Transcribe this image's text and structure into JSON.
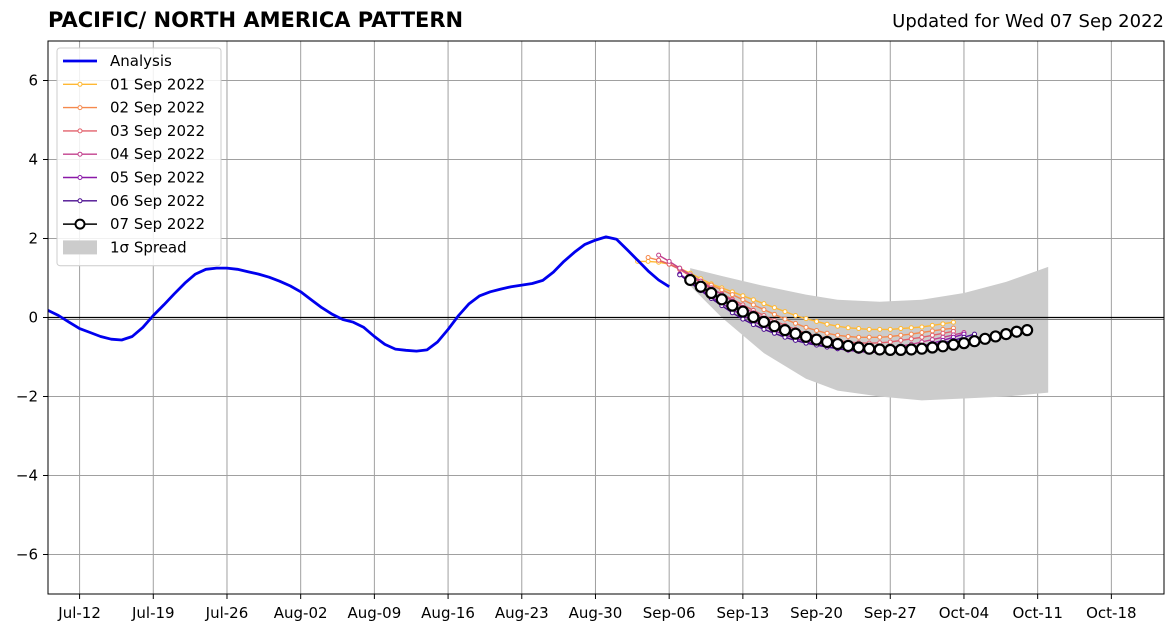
{
  "title": "PACIFIC/ NORTH AMERICA PATTERN",
  "subtitle": "Updated for Wed 07 Sep 2022",
  "chart_data": {
    "type": "line",
    "x_tick_labels": [
      "Jul-12",
      "Jul-19",
      "Jul-26",
      "Aug-02",
      "Aug-09",
      "Aug-16",
      "Aug-23",
      "Aug-30",
      "Sep-06",
      "Sep-13",
      "Sep-20",
      "Sep-27",
      "Oct-04",
      "Oct-11",
      "Oct-18"
    ],
    "y_ticks": [
      6,
      4,
      2,
      0,
      -2,
      -4,
      -6
    ],
    "y_tick_labels": [
      "6",
      "4",
      "2",
      "0",
      "−2",
      "−4",
      "−6"
    ],
    "xlim": [
      "2022-07-09",
      "2022-10-23"
    ],
    "ylim": [
      -7,
      7
    ],
    "grid": true,
    "legend_position": "top-left",
    "spread_label": "1σ Spread",
    "analysis": {
      "name": "Analysis",
      "color": "#0000ee",
      "start_date": "2022-07-09",
      "values": [
        0.18,
        0.05,
        -0.12,
        -0.28,
        -0.38,
        -0.48,
        -0.55,
        -0.57,
        -0.48,
        -0.25,
        0.05,
        0.32,
        0.6,
        0.87,
        1.1,
        1.22,
        1.25,
        1.25,
        1.22,
        1.16,
        1.1,
        1.02,
        0.92,
        0.8,
        0.65,
        0.45,
        0.25,
        0.08,
        -0.05,
        -0.12,
        -0.25,
        -0.48,
        -0.68,
        -0.8,
        -0.83,
        -0.85,
        -0.82,
        -0.62,
        -0.3,
        0.05,
        0.35,
        0.55,
        0.65,
        0.72,
        0.78,
        0.82,
        0.86,
        0.94,
        1.15,
        1.42,
        1.65,
        1.85,
        1.96,
        2.04,
        1.98,
        1.72,
        1.45,
        1.18,
        0.95,
        0.78
      ]
    },
    "forecasts": [
      {
        "name": "01 Sep 2022",
        "color": "#ffb833",
        "start_date": "2022-09-03",
        "values": [
          1.42,
          1.42,
          1.4,
          1.35,
          1.25,
          1.12,
          0.98,
          0.85,
          0.75,
          0.65,
          0.55,
          0.45,
          0.35,
          0.25,
          0.15,
          0.05,
          -0.03,
          -0.1,
          -0.17,
          -0.22,
          -0.26,
          -0.28,
          -0.3,
          -0.3,
          -0.3,
          -0.28,
          -0.26,
          -0.24,
          -0.2,
          -0.16,
          -0.12
        ]
      },
      {
        "name": "02 Sep 2022",
        "color": "#f5894e",
        "start_date": "2022-09-04",
        "values": [
          1.52,
          1.45,
          1.35,
          1.22,
          1.05,
          0.92,
          0.82,
          0.7,
          0.58,
          0.45,
          0.32,
          0.2,
          0.08,
          -0.04,
          -0.15,
          -0.25,
          -0.33,
          -0.4,
          -0.45,
          -0.48,
          -0.5,
          -0.5,
          -0.5,
          -0.48,
          -0.45,
          -0.42,
          -0.38,
          -0.34,
          -0.3,
          -0.27
        ]
      },
      {
        "name": "03 Sep 2022",
        "color": "#e2616c",
        "start_date": "2022-09-05",
        "values": [
          1.45,
          1.35,
          1.22,
          1.05,
          0.88,
          0.72,
          0.6,
          0.46,
          0.32,
          0.18,
          0.05,
          -0.08,
          -0.2,
          -0.3,
          -0.4,
          -0.47,
          -0.53,
          -0.58,
          -0.62,
          -0.64,
          -0.65,
          -0.64,
          -0.62,
          -0.58,
          -0.54,
          -0.5,
          -0.45,
          -0.4,
          -0.35
        ]
      },
      {
        "name": "04 Sep 2022",
        "color": "#c2408d",
        "start_date": "2022-09-05",
        "values": [
          1.58,
          1.42,
          1.25,
          1.08,
          0.92,
          0.75,
          0.58,
          0.42,
          0.26,
          0.12,
          -0.02,
          -0.15,
          -0.28,
          -0.4,
          -0.5,
          -0.58,
          -0.64,
          -0.69,
          -0.73,
          -0.76,
          -0.78,
          -0.78,
          -0.76,
          -0.72,
          -0.68,
          -0.62,
          -0.56,
          -0.5,
          -0.44,
          -0.38
        ]
      },
      {
        "name": "05 Sep 2022",
        "color": "#8a19a8",
        "start_date": "2022-09-07",
        "values": [
          1.1,
          0.92,
          0.72,
          0.52,
          0.35,
          0.2,
          0.05,
          -0.1,
          -0.22,
          -0.34,
          -0.44,
          -0.53,
          -0.61,
          -0.68,
          -0.74,
          -0.79,
          -0.83,
          -0.86,
          -0.88,
          -0.88,
          -0.86,
          -0.83,
          -0.78,
          -0.72,
          -0.65,
          -0.58,
          -0.5,
          -0.42
        ]
      },
      {
        "name": "06 Sep 2022",
        "color": "#4a0c8f",
        "start_date": "2022-09-07",
        "values": [
          1.08,
          0.88,
          0.68,
          0.48,
          0.3,
          0.12,
          -0.04,
          -0.18,
          -0.3,
          -0.4,
          -0.5,
          -0.58,
          -0.65,
          -0.7,
          -0.75,
          -0.79,
          -0.82,
          -0.84,
          -0.85,
          -0.85,
          -0.84,
          -0.82,
          -0.8,
          -0.76,
          -0.7,
          -0.64,
          -0.58,
          -0.5,
          -0.42
        ]
      }
    ],
    "current": {
      "name": "07 Sep 2022",
      "color": "#000000",
      "start_date": "2022-09-08",
      "values": [
        0.95,
        0.78,
        0.62,
        0.46,
        0.3,
        0.15,
        0.01,
        -0.11,
        -0.22,
        -0.32,
        -0.41,
        -0.49,
        -0.56,
        -0.62,
        -0.67,
        -0.72,
        -0.76,
        -0.79,
        -0.81,
        -0.82,
        -0.82,
        -0.81,
        -0.79,
        -0.76,
        -0.73,
        -0.69,
        -0.65,
        -0.6,
        -0.54,
        -0.48,
        -0.42,
        -0.36,
        -0.32
      ]
    },
    "spread": {
      "name": "1σ Spread",
      "color": "#cccccc",
      "start_date": "2022-09-08",
      "x_offsets": [
        0,
        3,
        7,
        11,
        14,
        18,
        22,
        26,
        30,
        34
      ],
      "upper": [
        1.25,
        1.05,
        0.8,
        0.58,
        0.45,
        0.4,
        0.45,
        0.62,
        0.9,
        1.28
      ],
      "lower": [
        0.8,
        0.0,
        -0.9,
        -1.55,
        -1.85,
        -2.0,
        -2.1,
        -2.05,
        -2.0,
        -1.9
      ]
    }
  }
}
